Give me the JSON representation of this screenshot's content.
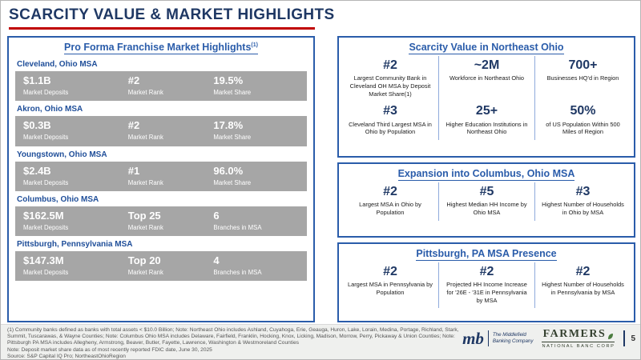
{
  "colors": {
    "accent_red": "#C00000",
    "accent_blue": "#2A5CAA",
    "navy": "#1F3864",
    "bar_gray": "#A6A6A6"
  },
  "slide": {
    "title": "SCARCITY VALUE & MARKET HIGHLIGHTS",
    "page_number": "5"
  },
  "left_panel": {
    "title": "Pro Forma Franchise Market Highlights",
    "title_sup": "(1)",
    "markets": [
      {
        "name": "Cleveland, Ohio MSA",
        "stats": [
          {
            "value": "$1.1B",
            "label": "Market Deposits"
          },
          {
            "value": "#2",
            "label": "Market Rank"
          },
          {
            "value": "19.5%",
            "label": "Market Share"
          }
        ]
      },
      {
        "name": "Akron, Ohio MSA",
        "stats": [
          {
            "value": "$0.3B",
            "label": "Market Deposits"
          },
          {
            "value": "#2",
            "label": "Market Rank"
          },
          {
            "value": "17.8%",
            "label": "Market Share"
          }
        ]
      },
      {
        "name": "Youngstown, Ohio MSA",
        "stats": [
          {
            "value": "$2.4B",
            "label": "Market Deposits"
          },
          {
            "value": "#1",
            "label": "Market Rank"
          },
          {
            "value": "96.0%",
            "label": "Market Share"
          }
        ]
      },
      {
        "name": "Columbus, Ohio MSA",
        "stats": [
          {
            "value": "$162.5M",
            "label": "Market Deposits"
          },
          {
            "value": "Top 25",
            "label": "Market Rank"
          },
          {
            "value": "6",
            "label": "Branches in MSA"
          }
        ]
      },
      {
        "name": "Pittsburgh, Pennsylvania MSA",
        "stats": [
          {
            "value": "$147.3M",
            "label": "Market Deposits"
          },
          {
            "value": "Top 20",
            "label": "Market Rank"
          },
          {
            "value": "4",
            "label": "Branches in MSA"
          }
        ]
      }
    ]
  },
  "right_panels": [
    {
      "title": "Scarcity Value in Northeast Ohio",
      "stats": [
        {
          "value": "#2",
          "label": "Largest Community Bank in Cleveland OH MSA by Deposit Market Share(1)"
        },
        {
          "value": "~2M",
          "label": "Workforce in Northeast Ohio"
        },
        {
          "value": "700+",
          "label": "Businesses HQ'd in Region"
        },
        {
          "value": "#3",
          "label": "Cleveland Third Largest MSA in Ohio by Population"
        },
        {
          "value": "25+",
          "label": "Higher Education Institutions in Northeast Ohio"
        },
        {
          "value": "50%",
          "label": "of US Population Within 500 Miles of Region"
        }
      ]
    },
    {
      "title": "Expansion into Columbus, Ohio MSA",
      "stats": [
        {
          "value": "#2",
          "label": "Largest MSA in Ohio by Population"
        },
        {
          "value": "#5",
          "label": "Highest Median HH Income by Ohio MSA"
        },
        {
          "value": "#3",
          "label": "Highest Number of Households in Ohio by MSA"
        }
      ]
    },
    {
      "title": "Pittsburgh, PA MSA Presence",
      "stats": [
        {
          "value": "#2",
          "label": "Largest MSA in Pennsylvania by Population"
        },
        {
          "value": "#2",
          "label": "Projected HH Income Increase for '26E - '31E in Pennsylvania by MSA"
        },
        {
          "value": "#2",
          "label": "Highest Number of Households in Pennsylvania by MSA"
        }
      ]
    }
  ],
  "footer": {
    "lines": [
      "(1) Community banks defined as banks with total assets < $10.0 Billion;  Note: Northeast Ohio includes Ashland, Cuyahoga, Erie, Geauga, Huron, Lake, Lorain, Medina, Portage, Richland, Stark, Summit, Tuscarawas, & Wayne Counties;  Note: Columbus Ohio MSA includes Delaware, Fairfield, Franklin, Hocking, Knox, Licking, Madison, Morrow, Perry, Pickaway & Union Counties;  Note: Pittsburgh PA MSA includes Allegheny, Armstrong, Beaver, Butler, Fayette, Lawrence, Washington & Westmoreland Counties",
      "Note: Deposit market share data as of most recently reported FDIC date, June 30, 2025",
      "Source: S&P Capital IQ Pro; NortheastOhioRegion"
    ]
  },
  "logos": {
    "mb_mark": "mb",
    "mb_caption_line1": "The Middlefield",
    "mb_caption_line2": "Banking Company",
    "farmers_name": "FARMERS",
    "farmers_sub": "NATIONAL BANC CORP"
  }
}
